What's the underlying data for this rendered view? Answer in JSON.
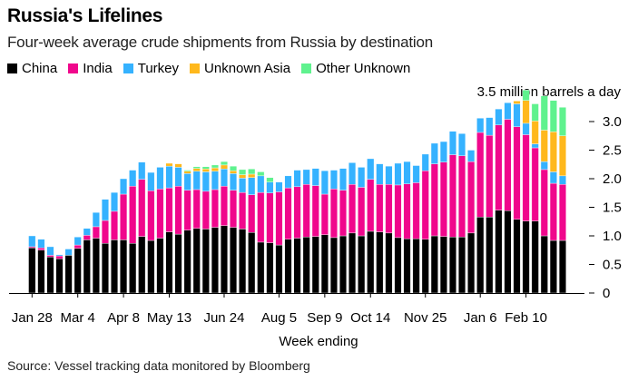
{
  "chart_data": {
    "type": "bar",
    "stacked": true,
    "title": "Russia's Lifelines",
    "subtitle": "Four-week average crude shipments from Russia by destination",
    "unit_label": "3.5 million barrels a day",
    "xlabel": "Week ending",
    "ylabel": "million barrels a day",
    "ylim": [
      0,
      3.5
    ],
    "yticks": [
      0,
      0.5,
      1.0,
      1.5,
      2.0,
      2.5,
      3.0
    ],
    "ytick_labels": [
      "0",
      "0.5",
      "1.0",
      "1.5",
      "2.0",
      "2.5",
      "3.0"
    ],
    "xtick_labels": [
      {
        "label": "Jan 28",
        "index": 0
      },
      {
        "label": "Mar 4",
        "index": 5
      },
      {
        "label": "Apr 8",
        "index": 10
      },
      {
        "label": "May 13",
        "index": 15
      },
      {
        "label": "Jun 24",
        "index": 21
      },
      {
        "label": "Aug 5",
        "index": 27
      },
      {
        "label": "Sep 9",
        "index": 32
      },
      {
        "label": "Oct 14",
        "index": 37
      },
      {
        "label": "Nov 25",
        "index": 43
      },
      {
        "label": "Jan 6",
        "index": 49
      },
      {
        "label": "Feb 10",
        "index": 54
      }
    ],
    "legend_position": "top-left",
    "grid": false,
    "series": [
      {
        "name": "China",
        "color": "#000000",
        "values": [
          0.79,
          0.75,
          0.63,
          0.6,
          0.66,
          0.78,
          0.93,
          0.96,
          0.87,
          0.93,
          0.93,
          0.87,
          0.99,
          0.92,
          0.96,
          1.07,
          1.03,
          1.1,
          1.13,
          1.12,
          1.15,
          1.18,
          1.15,
          1.12,
          1.06,
          0.89,
          0.88,
          0.84,
          0.94,
          0.96,
          0.98,
          0.99,
          1.02,
          0.97,
          1.0,
          1.05,
          1.0,
          1.08,
          1.07,
          1.05,
          0.97,
          0.95,
          0.95,
          0.94,
          1.0,
          0.99,
          0.98,
          0.98,
          1.05,
          1.33,
          1.33,
          1.45,
          1.44,
          1.29,
          1.26,
          1.26,
          1.0,
          0.92,
          0.92
        ]
      },
      {
        "name": "India",
        "color": "#F0078C",
        "values": [
          0.02,
          0.04,
          0.03,
          0.05,
          0.0,
          0.06,
          0.08,
          0.2,
          0.4,
          0.5,
          0.8,
          1.0,
          1.0,
          0.87,
          0.86,
          0.77,
          0.84,
          0.7,
          0.68,
          0.66,
          0.66,
          0.69,
          0.65,
          0.64,
          0.66,
          0.87,
          0.87,
          0.93,
          0.9,
          0.9,
          0.92,
          0.89,
          0.71,
          0.85,
          0.8,
          0.85,
          0.85,
          0.91,
          0.83,
          0.85,
          0.92,
          0.96,
          0.98,
          1.2,
          1.26,
          1.3,
          1.44,
          1.42,
          1.25,
          1.48,
          1.43,
          1.49,
          1.6,
          1.62,
          1.51,
          1.28,
          1.16,
          1.0,
          0.98
        ]
      },
      {
        "name": "Turkey",
        "color": "#35B2FF",
        "values": [
          0.19,
          0.15,
          0.15,
          0.02,
          0.11,
          0.14,
          0.12,
          0.25,
          0.37,
          0.33,
          0.27,
          0.28,
          0.3,
          0.32,
          0.38,
          0.38,
          0.33,
          0.29,
          0.32,
          0.34,
          0.32,
          0.3,
          0.29,
          0.25,
          0.3,
          0.29,
          0.19,
          0.17,
          0.21,
          0.29,
          0.26,
          0.3,
          0.41,
          0.33,
          0.38,
          0.38,
          0.35,
          0.36,
          0.36,
          0.32,
          0.38,
          0.39,
          0.3,
          0.29,
          0.36,
          0.36,
          0.41,
          0.39,
          0.2,
          0.25,
          0.31,
          0.28,
          0.29,
          0.4,
          0.2,
          0.07,
          0.14,
          0.2,
          0.15
        ]
      },
      {
        "name": "Unknown Asia",
        "color": "#FFB81C",
        "values": [
          0,
          0,
          0,
          0,
          0,
          0,
          0,
          0,
          0,
          0,
          0,
          0,
          0,
          0,
          0,
          0.05,
          0.06,
          0.04,
          0.05,
          0.05,
          0.06,
          0.07,
          0.05,
          0.06,
          0.06,
          0,
          0,
          0,
          0,
          0,
          0,
          0,
          0,
          0,
          0,
          0,
          0,
          0,
          0,
          0,
          0,
          0,
          0,
          0,
          0,
          0,
          0,
          0,
          0,
          0,
          0,
          0,
          0,
          0.05,
          0.4,
          0.4,
          0.55,
          0.7,
          0.7
        ]
      },
      {
        "name": "Other Unknown",
        "color": "#5FF28E",
        "values": [
          0,
          0,
          0,
          0,
          0,
          0,
          0,
          0,
          0,
          0,
          0,
          0,
          0,
          0,
          0,
          0,
          0,
          0.02,
          0.03,
          0.04,
          0.05,
          0.06,
          0.08,
          0.09,
          0.09,
          0.07,
          0.08,
          0,
          0,
          0,
          0,
          0,
          0,
          0,
          0,
          0,
          0,
          0,
          0,
          0,
          0,
          0,
          0,
          0,
          0,
          0,
          0,
          0,
          0,
          0,
          0,
          0,
          0,
          0,
          0.18,
          0.3,
          0.6,
          0.55,
          0.5
        ]
      }
    ]
  },
  "source": "Source: Vessel tracking data monitored by Bloomberg"
}
